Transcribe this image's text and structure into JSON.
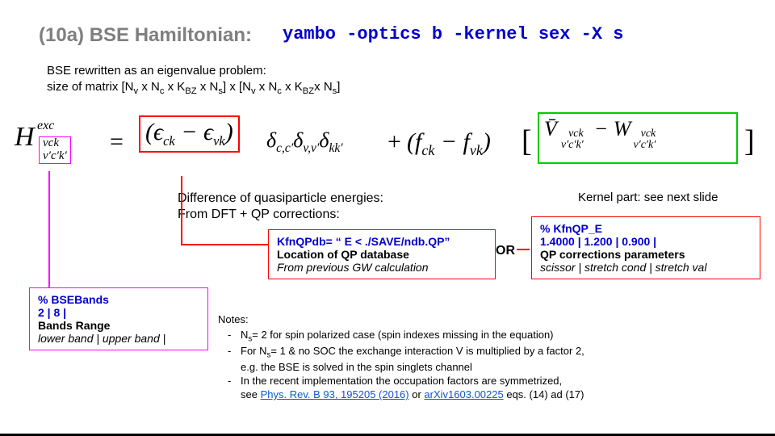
{
  "title": {
    "label": "(10a)  BSE Hamiltonian:",
    "command": "yambo -optics b -kernel sex -X s",
    "color": "#7f7f7f",
    "cmd_color": "#0000cc",
    "fontsize": 24
  },
  "intro": {
    "line1": "BSE rewritten as an eigenvalue problem:",
    "line2_html": "size of matrix [N<span class=\"sub\">v</span> x N<span class=\"sub\">c</span> x K<span class=\"sub\">BZ</span> x N<span class=\"sub\">s</span>] x [N<span class=\"sub\">v</span> x N<span class=\"sub\">c</span> x K<span class=\"sub\">BZ</span>x N<span class=\"sub\">s</span>]"
  },
  "equation": {
    "H_sup": "exc",
    "idx_top": "vck",
    "idx_bot": "v′c′k′",
    "eps_text": "(ϵ<sub style=\"font-size:0.55em\">ck</sub> − ϵ<sub style=\"font-size:0.55em\">vk</sub>)",
    "deltas_text": "δ<sub style=\"font-size:0.6em\">c,c′</sub>δ<sub style=\"font-size:0.6em\">v,v′</sub>δ<sub style=\"font-size:0.6em\">kk′</sub>",
    "f_text": "(f<sub style=\"font-size:0.6em\">ck</sub> − f<sub style=\"font-size:0.6em\">vk</sub>)",
    "kernel_html": "<span class=\"Vbar\">V̄</span><span class=\"idx\">vck<br>v′c′k′</span> &nbsp;− W<span class=\"idx\">vck<br>v′c′k′</span>",
    "index_box_color": "#ff00ff",
    "eps_box_color": "#ff0000",
    "kernel_box_color": "#00cc00"
  },
  "captions": {
    "qp_line1": "Difference of quasiparticle energies:",
    "qp_line2": "From DFT + QP corrections:",
    "kernel": "Kernel part: see next slide"
  },
  "boxes": {
    "bands": {
      "kw": "% BSEBands",
      "val": "  2  |  8  |",
      "label": "Bands Range",
      "desc": "lower band | upper band |",
      "border": "#ff00ff"
    },
    "qpdb": {
      "kw": "KfnQPdb= “ E < ./SAVE/ndb.QP”",
      "label": "Location of QP database",
      "desc": "From previous GW calculation",
      "border": "#ff0000"
    },
    "or_text": "OR",
    "qpe": {
      "kw": "% KfnQP_E",
      "val": " 1.4000 | 1.200 | 0.900 |",
      "label": "QP corrections parameters",
      "desc": "scissor | stretch cond | stretch val",
      "border": "#ff0000"
    }
  },
  "notes": {
    "header": "Notes:",
    "items": [
      "N<span class=\"sub\">s</span>= 2 for spin polarized case (spin indexes missing in the equation)",
      "For N<span class=\"sub\">s</span>= 1 & no SOC the exchange interaction V is multiplied by a factor 2,<br>e.g. the BSE is solved in the spin singlets channel",
      "In the recent implementation the occupation factors are symmetrized,<br>see <a href=\"#\">Phys. Rev. B 93, 195205 (2016)</a> or <a href=\"#\">arXiv1603.00225</a> eqs. (14) ad (17)"
    ]
  },
  "colors": {
    "background": "#ffffff",
    "text": "#000000",
    "link": "#1155cc"
  }
}
